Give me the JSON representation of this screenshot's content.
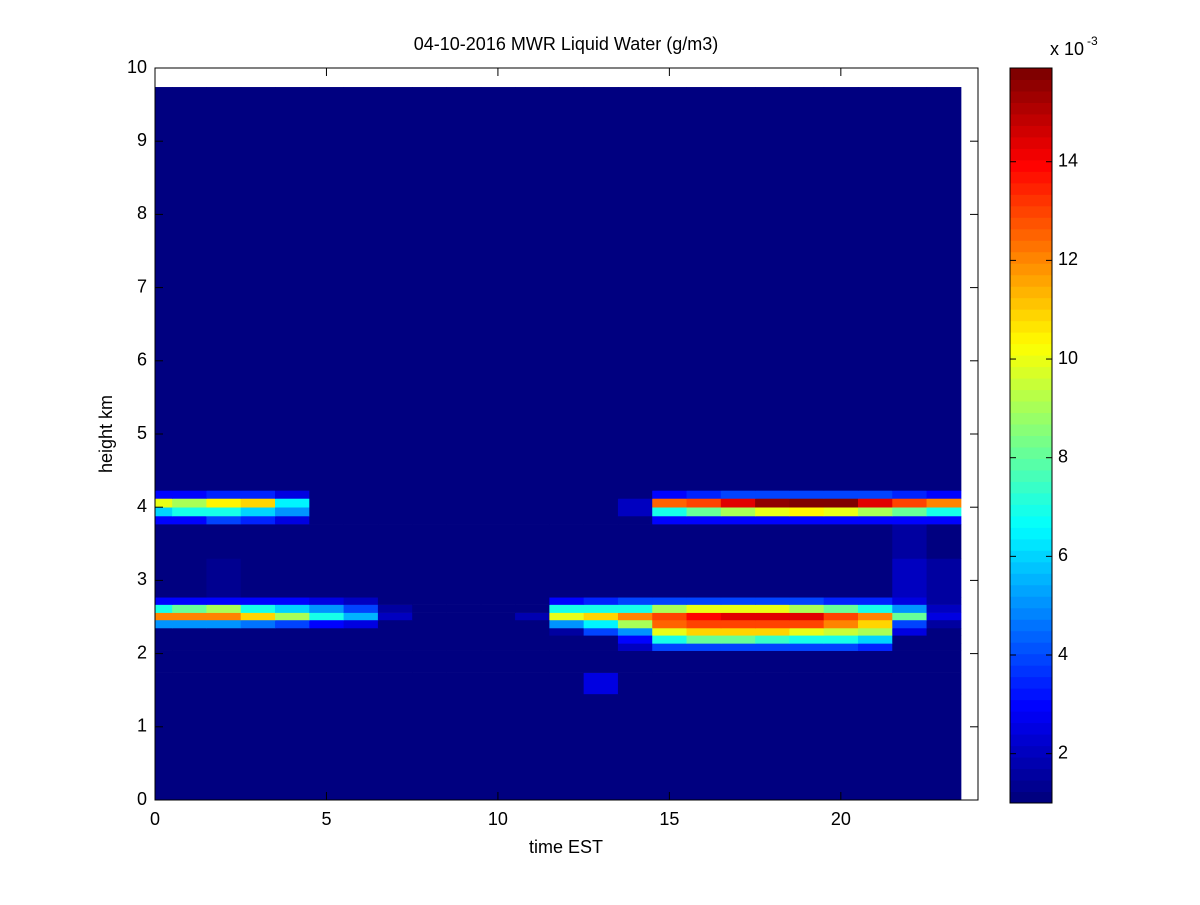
{
  "chart_data": {
    "type": "heatmap",
    "title": "04-10-2016 MWR Liquid Water (g/m3)",
    "xlabel": "time EST",
    "ylabel": "height km",
    "colorbar_label": "x 10",
    "colorbar_exponent": "-3",
    "colormap": "jet",
    "x": [
      0,
      1,
      2,
      3,
      4,
      5,
      6,
      7,
      8,
      9,
      10,
      11,
      12,
      13,
      14,
      15,
      16,
      17,
      18,
      19,
      20,
      21,
      22,
      23
    ],
    "y_edges": [
      0,
      1.45,
      1.74,
      2.04,
      2.14,
      2.25,
      2.35,
      2.46,
      2.56,
      2.67,
      2.77,
      3.3,
      3.77,
      3.88,
      4.0,
      4.12,
      4.23,
      9.74
    ],
    "z": [
      [
        1,
        1,
        1,
        1,
        1,
        1,
        1,
        1,
        1,
        1,
        1,
        1,
        1,
        1,
        1,
        1,
        1,
        1,
        1,
        1,
        1,
        1,
        1,
        1
      ],
      [
        1,
        1,
        1,
        1,
        1,
        1,
        1,
        1,
        1,
        1,
        1,
        1,
        1,
        2.5,
        1,
        1,
        1,
        1,
        1,
        1,
        1,
        1,
        1,
        1
      ],
      [
        1,
        1,
        1,
        1,
        1,
        1,
        1,
        1,
        1,
        1,
        1,
        1,
        1,
        1,
        1,
        1,
        1,
        1,
        1,
        1,
        1,
        1,
        1,
        1
      ],
      [
        1,
        1,
        1,
        1,
        1,
        1,
        1,
        1,
        1,
        1,
        1,
        1,
        1,
        1,
        2,
        4,
        4,
        4,
        4,
        4,
        4,
        3.5,
        1,
        1
      ],
      [
        1,
        1,
        1,
        1,
        1,
        1,
        1,
        1,
        1,
        1,
        1,
        1,
        1,
        1,
        3,
        7,
        8,
        8,
        7.5,
        7,
        7,
        6,
        1,
        1
      ],
      [
        1,
        1,
        1,
        1,
        1,
        1,
        1,
        1,
        1,
        1,
        1,
        1,
        1.5,
        4,
        5,
        10,
        11,
        11,
        11,
        10,
        9.5,
        9,
        2.5,
        1
      ],
      [
        5,
        5,
        5,
        4.5,
        4,
        3,
        2.5,
        1,
        1,
        1,
        1,
        1,
        5,
        6.5,
        9,
        12.5,
        13,
        13,
        13,
        13,
        12,
        11,
        4,
        1.5
      ],
      [
        12,
        12,
        12,
        11,
        9,
        7,
        5.5,
        2,
        1,
        1,
        1,
        1.8,
        10,
        11,
        12,
        13,
        14,
        14.5,
        14.5,
        14.5,
        13,
        12,
        8,
        2.5
      ],
      [
        7,
        8,
        9,
        7,
        6,
        5,
        4,
        1.6,
        1,
        1,
        1,
        1,
        7,
        7,
        7,
        9,
        10,
        10,
        10,
        9,
        8,
        7,
        5,
        2
      ],
      [
        3,
        3,
        3,
        3,
        3,
        2.5,
        2,
        1,
        1,
        1,
        1,
        1,
        3,
        3.5,
        4,
        4,
        4,
        4,
        4,
        4,
        3.5,
        3.5,
        2.5,
        1.5
      ],
      [
        1,
        1,
        1.3,
        1,
        1,
        1,
        1,
        1,
        1,
        1,
        1,
        1,
        1,
        1,
        1,
        1,
        1,
        1,
        1,
        1,
        1,
        1,
        2,
        1.5
      ],
      [
        1,
        1,
        1,
        1,
        1,
        1,
        1,
        1,
        1,
        1,
        1,
        1,
        1,
        1,
        1,
        1,
        1,
        1,
        1,
        1,
        1,
        1,
        1.6,
        1
      ],
      [
        3,
        3,
        4,
        3.5,
        2.5,
        1,
        1,
        1,
        1,
        1,
        1,
        1,
        1,
        1,
        1,
        3,
        3,
        3,
        3,
        3,
        3,
        3,
        3,
        3
      ],
      [
        6,
        7,
        7,
        6,
        5,
        1,
        1,
        1,
        1,
        1,
        1,
        1,
        1,
        1,
        2,
        7,
        8,
        9,
        10,
        10.5,
        10,
        9,
        8,
        7
      ],
      [
        10,
        9,
        10.5,
        11,
        6.5,
        1,
        1,
        1,
        1,
        1,
        1,
        1,
        1,
        1,
        2,
        12.5,
        13,
        14.5,
        15.5,
        15.9,
        15.9,
        14.5,
        13,
        12
      ],
      [
        3,
        3,
        3.5,
        3.5,
        2.5,
        1,
        1,
        1,
        1,
        1,
        1,
        1,
        1,
        1,
        1,
        3,
        3.5,
        4,
        4,
        4,
        4,
        4,
        3.5,
        3
      ],
      [
        1,
        1,
        1,
        1,
        1,
        1,
        1,
        1,
        1,
        1,
        1,
        1,
        1,
        1,
        1,
        1,
        1,
        1,
        1,
        1,
        1,
        1,
        1,
        1
      ]
    ],
    "xlim": [
      0,
      24
    ],
    "xticks": [
      0,
      5,
      10,
      15,
      20
    ],
    "ylim": [
      0,
      10
    ],
    "yticks": [
      0,
      1,
      2,
      3,
      4,
      5,
      6,
      7,
      8,
      9,
      10
    ],
    "clim": [
      1,
      15.9
    ],
    "cticks": [
      2,
      4,
      6,
      8,
      10,
      12,
      14
    ]
  }
}
